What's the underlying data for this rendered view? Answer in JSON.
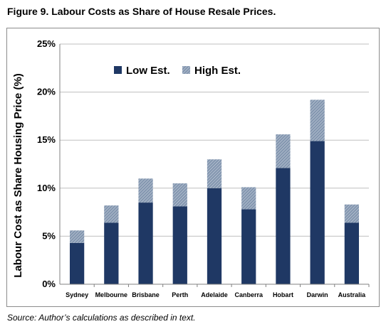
{
  "figure": {
    "title": "Figure 9. Labour Costs as Share of House Resale Prices.",
    "source": "Source: Author’s calculations as described in text."
  },
  "colors": {
    "low": "#1f3864",
    "high": "#8497b0",
    "grid": "#bfbfbf",
    "axis": "#808080"
  },
  "chart_data": {
    "type": "bar",
    "stacked": true,
    "categories": [
      "Sydney",
      "Melbourne",
      "Brisbane",
      "Perth",
      "Adelaide",
      "Canberra",
      "Hobart",
      "Darwin",
      "Australia"
    ],
    "series": [
      {
        "name": "Low Est.",
        "values": [
          4.3,
          6.4,
          8.5,
          8.1,
          10.0,
          7.8,
          12.1,
          14.9,
          6.4
        ]
      },
      {
        "name": "High Est.",
        "values": [
          1.3,
          1.8,
          2.5,
          2.4,
          3.0,
          2.3,
          3.5,
          4.3,
          1.9
        ]
      }
    ],
    "totals": [
      5.6,
      8.2,
      11.0,
      10.5,
      13.0,
      10.1,
      15.6,
      19.2,
      8.3
    ],
    "ylabel": "Labour Cost as Share Housing Price (%)",
    "xlabel": "",
    "ylim": [
      0,
      25
    ],
    "yticks": [
      0,
      5,
      10,
      15,
      20,
      25
    ],
    "ytick_labels": [
      "0%",
      "5%",
      "10%",
      "15%",
      "20%",
      "25%"
    ],
    "grid": true,
    "legend": "top-left"
  }
}
